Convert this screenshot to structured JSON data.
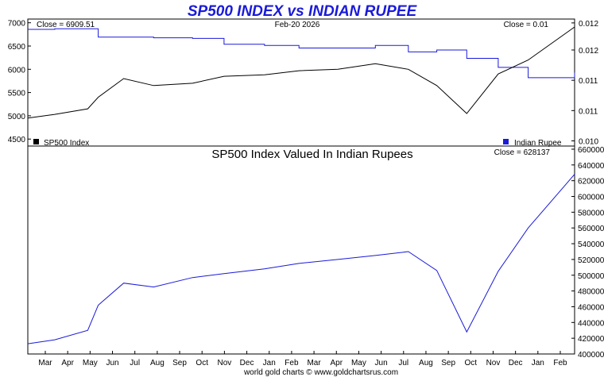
{
  "title": "SP500 INDEX vs INDIAN RUPEE",
  "footer": "world gold charts © www.goldchartsrus.com",
  "colors": {
    "sp500": "#000000",
    "rupee": "#1a1ad9",
    "title": "#1a1ad9"
  },
  "chart_data": [
    {
      "type": "line",
      "panel": "top",
      "date_label": "Feb-20  2026",
      "left_close_label": "Close = 6909.51",
      "right_close_label": "Close = 0.01",
      "left_axis": {
        "ticks": [
          4500,
          5000,
          5500,
          6000,
          6500,
          7000
        ],
        "range": [
          4350,
          7080
        ]
      },
      "right_axis": {
        "ticks": [
          "0.010",
          "0.011",
          "0.011",
          "0.012",
          "0.012"
        ],
        "range": [
          0.01014,
          0.01211
        ]
      },
      "legend": [
        {
          "name": "SP500 Index",
          "placement": "bottom-left"
        },
        {
          "name": "Indian Rupee",
          "placement": "bottom-right"
        }
      ],
      "series": [
        {
          "name": "SP500 Index",
          "axis": "left",
          "x": [
            "2025-02-20",
            "2025-03-10",
            "2025-04-01",
            "2025-04-08",
            "2025-04-25",
            "2025-05-15",
            "2025-06-10",
            "2025-07-01",
            "2025-07-28",
            "2025-08-20",
            "2025-09-15",
            "2025-10-10",
            "2025-11-01",
            "2025-11-20",
            "2025-12-10",
            "2025-12-31",
            "2026-01-20",
            "2026-02-20"
          ],
          "values": [
            4950,
            5030,
            5150,
            5400,
            5800,
            5650,
            5700,
            5850,
            5880,
            5970,
            6000,
            6120,
            6000,
            5650,
            5050,
            5900,
            6200,
            6909.51
          ]
        },
        {
          "name": "Indian Rupee",
          "axis": "right",
          "x": [
            "2025-02-20",
            "2025-03-10",
            "2025-04-01",
            "2025-04-08",
            "2025-04-25",
            "2025-05-15",
            "2025-06-10",
            "2025-07-01",
            "2025-07-28",
            "2025-08-20",
            "2025-09-15",
            "2025-10-10",
            "2025-11-01",
            "2025-11-20",
            "2025-12-10",
            "2025-12-31",
            "2026-01-20",
            "2026-02-20"
          ],
          "values": [
            0.01195,
            0.01196,
            0.01196,
            0.01183,
            0.01183,
            0.01182,
            0.01181,
            0.01172,
            0.0117,
            0.01166,
            0.01166,
            0.0117,
            0.0116,
            0.01163,
            0.0115,
            0.01136,
            0.0112,
            0.01128
          ]
        }
      ],
      "x_categories": [
        "Mar",
        "Apr",
        "May",
        "Jun",
        "Jul",
        "Aug",
        "Sep",
        "Oct",
        "Nov",
        "Dec",
        "Jan",
        "Feb",
        "Mar",
        "Apr",
        "May",
        "Jun",
        "Jul",
        "Aug",
        "Sep",
        "Oct",
        "Nov",
        "Dec",
        "Jan",
        "Feb"
      ]
    },
    {
      "type": "line",
      "panel": "bottom",
      "title": "SP500 Index Valued In Indian Rupees",
      "right_close_label": "Close = 628137",
      "right_axis": {
        "ticks": [
          400000,
          420000,
          440000,
          460000,
          480000,
          500000,
          520000,
          540000,
          560000,
          580000,
          600000,
          620000,
          640000,
          660000
        ],
        "range": [
          400000,
          664000
        ]
      },
      "series": [
        {
          "name": "SP500 Index Valued In Indian Rupees",
          "x": [
            "2025-02-20",
            "2025-03-10",
            "2025-04-01",
            "2025-04-08",
            "2025-04-25",
            "2025-05-15",
            "2025-06-10",
            "2025-07-01",
            "2025-07-28",
            "2025-08-20",
            "2025-09-15",
            "2025-10-10",
            "2025-11-01",
            "2025-11-20",
            "2025-12-10",
            "2025-12-31",
            "2026-01-20",
            "2026-02-20"
          ],
          "values": [
            413000,
            418000,
            430000,
            462000,
            490000,
            485000,
            497000,
            502000,
            508000,
            515000,
            520000,
            525000,
            530000,
            506000,
            428000,
            505000,
            560000,
            628137
          ]
        }
      ],
      "x_categories": [
        "Mar",
        "Apr",
        "May",
        "Jun",
        "Jul",
        "Aug",
        "Sep",
        "Oct",
        "Nov",
        "Dec",
        "Jan",
        "Feb",
        "Mar",
        "Apr",
        "May",
        "Jun",
        "Jul",
        "Aug",
        "Sep",
        "Oct",
        "Nov",
        "Dec",
        "Jan",
        "Feb"
      ]
    }
  ]
}
